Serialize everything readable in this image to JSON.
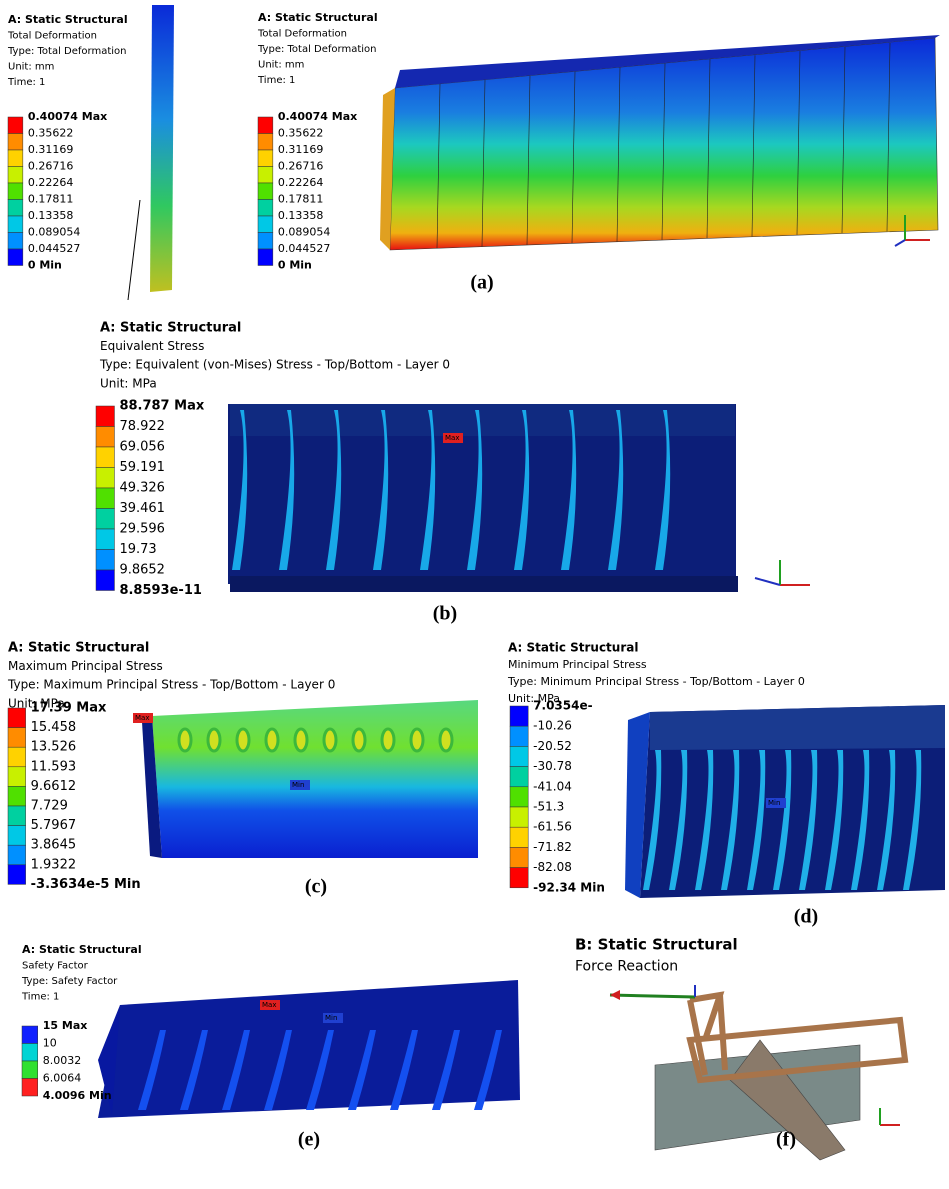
{
  "panels": [
    {
      "caption": "(a)",
      "views": [
        {
          "title": "A: Static Structural",
          "lines": [
            "Total Deformation",
            "Type: Total Deformation",
            "Unit: mm",
            "Time: 1"
          ],
          "legend": [
            "0.40074 Max",
            "0.35622",
            "0.31169",
            "0.26716",
            "0.22264",
            "0.17811",
            "0.13358",
            "0.089054",
            "0.044527",
            "0 Min"
          ]
        },
        {
          "title": "A: Static Structural",
          "lines": [
            "Total Deformation",
            "Type: Total Deformation",
            "Unit: mm",
            "Time: 1"
          ],
          "legend": [
            "0.40074 Max",
            "0.35622",
            "0.31169",
            "0.26716",
            "0.22264",
            "0.17811",
            "0.13358",
            "0.089054",
            "0.044527",
            "0 Min"
          ]
        }
      ]
    },
    {
      "caption": "(b)",
      "views": [
        {
          "title": "A: Static Structural",
          "lines": [
            "Equivalent Stress",
            "Type: Equivalent (von-Mises) Stress - Top/Bottom - Layer 0",
            "Unit: MPa"
          ],
          "legend": [
            "88.787 Max",
            "78.922",
            "69.056",
            "59.191",
            "49.326",
            "39.461",
            "29.596",
            "19.73",
            "9.8652",
            "8.8593e-11"
          ],
          "probes": [
            "Max"
          ]
        }
      ]
    },
    {
      "caption": "(c)",
      "views": [
        {
          "title": "A: Static Structural",
          "lines": [
            "Maximum Principal Stress",
            "Type: Maximum Principal Stress - Top/Bottom - Layer 0",
            "Unit: MPa"
          ],
          "legend": [
            "17.39 Max",
            "15.458",
            "13.526",
            "11.593",
            "9.6612",
            "7.729",
            "5.7967",
            "3.8645",
            "1.9322",
            "-3.3634e-5 Min"
          ],
          "probes": [
            "Max",
            "Min"
          ]
        }
      ]
    },
    {
      "caption": "(d)",
      "views": [
        {
          "title": "A: Static Structural",
          "lines": [
            "Minimum Principal Stress",
            "Type: Minimum Principal Stress - Top/Bottom - Layer 0",
            "Unit: MPa"
          ],
          "legend": [
            "7.0354e-",
            "-10.26",
            "-20.52",
            "-30.78",
            "-41.04",
            "-51.3",
            "-61.56",
            "-71.82",
            "-82.08",
            "-92.34 Min"
          ],
          "probes": [
            "Min"
          ]
        }
      ]
    },
    {
      "caption": "(e)",
      "views": [
        {
          "title": "A: Static Structural",
          "lines": [
            "Safety Factor",
            "Type: Safety Factor",
            "Time: 1"
          ],
          "legend": [
            "15 Max",
            "10",
            "8.0032",
            "6.0064",
            "4.0096 Min"
          ],
          "probes": [
            "Max",
            "Min"
          ]
        }
      ]
    },
    {
      "caption": "(f)",
      "views": [
        {
          "title": "B: Static Structural",
          "lines": [
            "Force Reaction"
          ]
        }
      ]
    }
  ]
}
